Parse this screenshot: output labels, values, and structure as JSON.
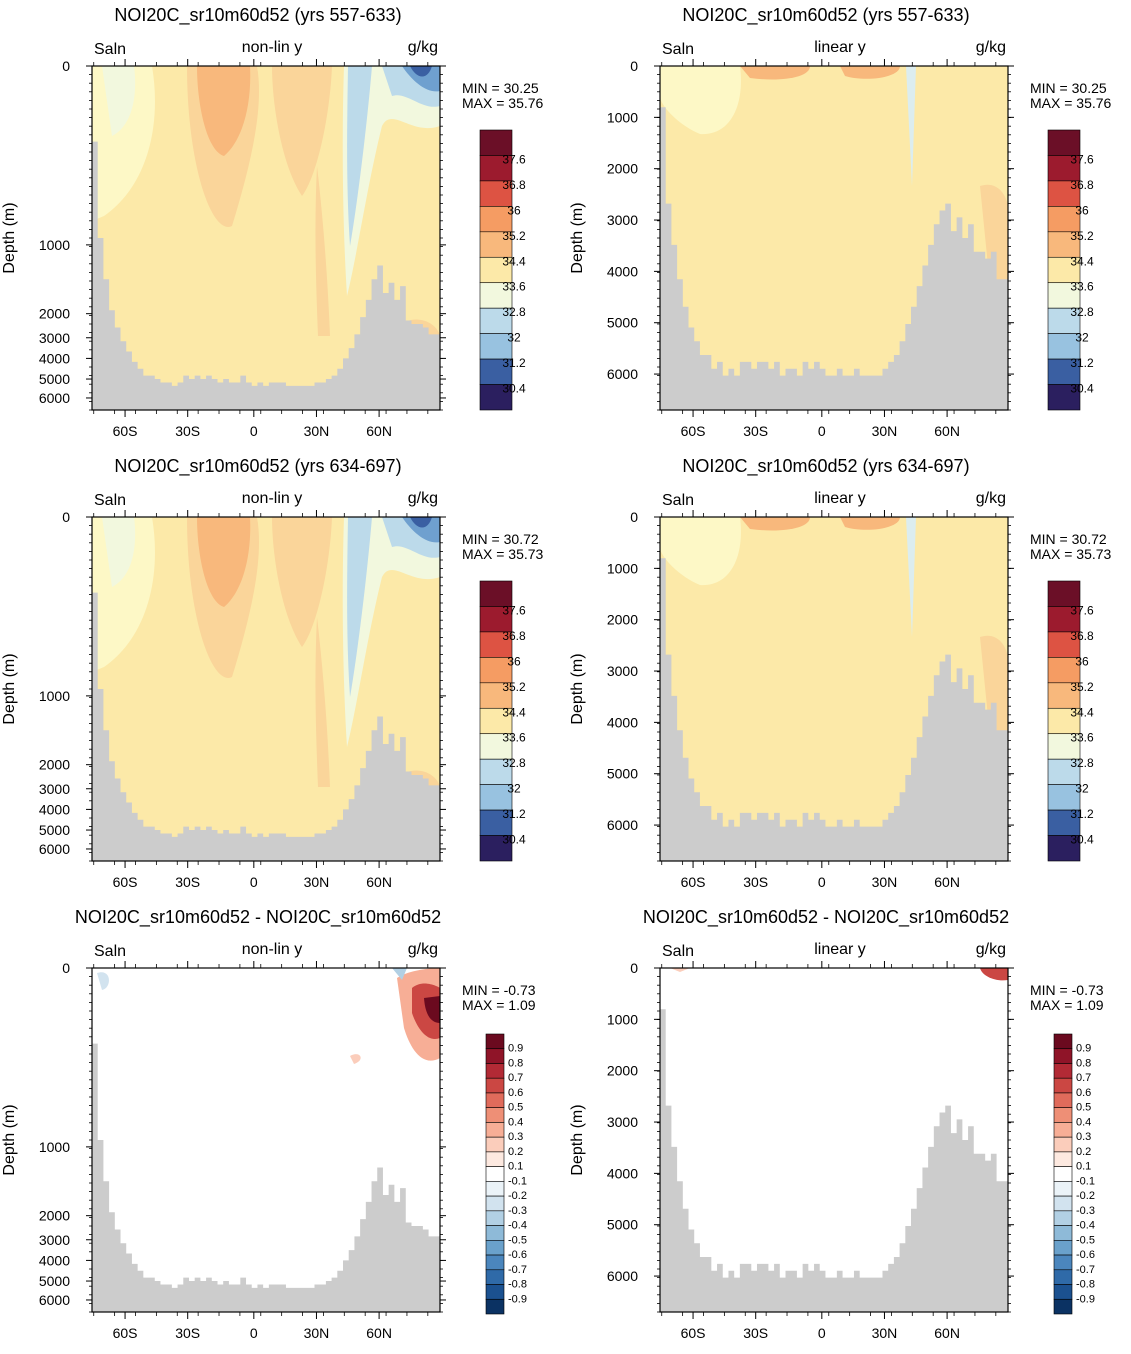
{
  "chart_data": [
    {
      "type": "heatmap",
      "panel_id": "p1",
      "title": "NOI20C_sr10m60d52 (yrs 557-633)",
      "left_label": "Saln",
      "center_label": "non-lin y",
      "right_label": "g/kg",
      "ylabel": "Depth (m)",
      "yticks": [
        "0",
        "1000",
        "2000",
        "3000",
        "4000",
        "5000",
        "6000"
      ],
      "xticks": [
        "60S",
        "30S",
        "0",
        "30N",
        "60N"
      ],
      "min_label": "MIN =  30.25",
      "max_label": "MAX =  35.76",
      "colorbar_labels": [
        "37.6",
        "36.8",
        "36",
        "35.2",
        "34.4",
        "33.6",
        "32.8",
        "32",
        "31.2",
        "30.4"
      ]
    },
    {
      "type": "heatmap",
      "panel_id": "p2",
      "title": "NOI20C_sr10m60d52 (yrs 557-633)",
      "left_label": "Saln",
      "center_label": "linear y",
      "right_label": "g/kg",
      "ylabel": "Depth (m)",
      "yticks": [
        "0",
        "1000",
        "2000",
        "3000",
        "4000",
        "5000",
        "6000"
      ],
      "xticks": [
        "60S",
        "30S",
        "0",
        "30N",
        "60N"
      ],
      "min_label": "MIN =  30.25",
      "max_label": "MAX =  35.76",
      "colorbar_labels": [
        "37.6",
        "36.8",
        "36",
        "35.2",
        "34.4",
        "33.6",
        "32.8",
        "32",
        "31.2",
        "30.4"
      ]
    },
    {
      "type": "heatmap",
      "panel_id": "p3",
      "title": "NOI20C_sr10m60d52 (yrs 634-697)",
      "left_label": "Saln",
      "center_label": "non-lin y",
      "right_label": "g/kg",
      "ylabel": "Depth (m)",
      "yticks": [
        "0",
        "1000",
        "2000",
        "3000",
        "4000",
        "5000",
        "6000"
      ],
      "xticks": [
        "60S",
        "30S",
        "0",
        "30N",
        "60N"
      ],
      "min_label": "MIN =  30.72",
      "max_label": "MAX =  35.73",
      "colorbar_labels": [
        "37.6",
        "36.8",
        "36",
        "35.2",
        "34.4",
        "33.6",
        "32.8",
        "32",
        "31.2",
        "30.4"
      ]
    },
    {
      "type": "heatmap",
      "panel_id": "p4",
      "title": "NOI20C_sr10m60d52 (yrs 634-697)",
      "left_label": "Saln",
      "center_label": "linear y",
      "right_label": "g/kg",
      "ylabel": "Depth (m)",
      "yticks": [
        "0",
        "1000",
        "2000",
        "3000",
        "4000",
        "5000",
        "6000"
      ],
      "xticks": [
        "60S",
        "30S",
        "0",
        "30N",
        "60N"
      ],
      "min_label": "MIN =  30.72",
      "max_label": "MAX =  35.73",
      "colorbar_labels": [
        "37.6",
        "36.8",
        "36",
        "35.2",
        "34.4",
        "33.6",
        "32.8",
        "32",
        "31.2",
        "30.4"
      ]
    },
    {
      "type": "heatmap",
      "panel_id": "p5",
      "title": "NOI20C_sr10m60d52 - NOI20C_sr10m60d52",
      "left_label": "Saln",
      "center_label": "non-lin y",
      "right_label": "g/kg",
      "ylabel": "Depth (m)",
      "yticks": [
        "0",
        "1000",
        "2000",
        "3000",
        "4000",
        "5000",
        "6000"
      ],
      "xticks": [
        "60S",
        "30S",
        "0",
        "30N",
        "60N"
      ],
      "min_label": "MIN =  -0.73",
      "max_label": "MAX =   1.09",
      "colorbar_labels": [
        "0.9",
        "0.8",
        "0.7",
        "0.6",
        "0.5",
        "0.4",
        "0.3",
        "0.2",
        "0.1",
        "-0.1",
        "-0.2",
        "-0.3",
        "-0.4",
        "-0.5",
        "-0.6",
        "-0.7",
        "-0.8",
        "-0.9"
      ]
    },
    {
      "type": "heatmap",
      "panel_id": "p6",
      "title": "NOI20C_sr10m60d52 - NOI20C_sr10m60d52",
      "left_label": "Saln",
      "center_label": "linear y",
      "right_label": "g/kg",
      "ylabel": "Depth (m)",
      "yticks": [
        "0",
        "1000",
        "2000",
        "3000",
        "4000",
        "5000",
        "6000"
      ],
      "xticks": [
        "60S",
        "30S",
        "0",
        "30N",
        "60N"
      ],
      "min_label": "MIN =  -0.73",
      "max_label": "MAX =   1.09",
      "colorbar_labels": [
        "0.9",
        "0.8",
        "0.7",
        "0.6",
        "0.5",
        "0.4",
        "0.3",
        "0.2",
        "0.1",
        "-0.1",
        "-0.2",
        "-0.3",
        "-0.4",
        "-0.5",
        "-0.6",
        "-0.7",
        "-0.8",
        "-0.9"
      ]
    }
  ],
  "colors": {
    "bathymetry": "#cccccc",
    "saln_scale": [
      "#2b1f5f",
      "#313d7f",
      "#3a5fa2",
      "#5080bd",
      "#6fa0cf",
      "#98c2e0",
      "#bcdaea",
      "#dcedef",
      "#f2f8de",
      "#fdf8c6",
      "#fce9a8",
      "#fad59a",
      "#f8b87c",
      "#f59c63",
      "#ed7a51",
      "#dd5343",
      "#c2303a",
      "#9c1b2e",
      "#6b0f27"
    ],
    "diff_scale": [
      "#0b3263",
      "#1b5190",
      "#2f6aa8",
      "#4b86bd",
      "#6aa1cb",
      "#8ebad8",
      "#b2d0e4",
      "#d2e3ef",
      "#ebf3f8",
      "#ffffff",
      "#fde9e0",
      "#fbcdbb",
      "#f7ae96",
      "#ee8f76",
      "#e06b5b",
      "#cb4743",
      "#b22a35",
      "#8f1428",
      "#6b0a1f"
    ]
  }
}
